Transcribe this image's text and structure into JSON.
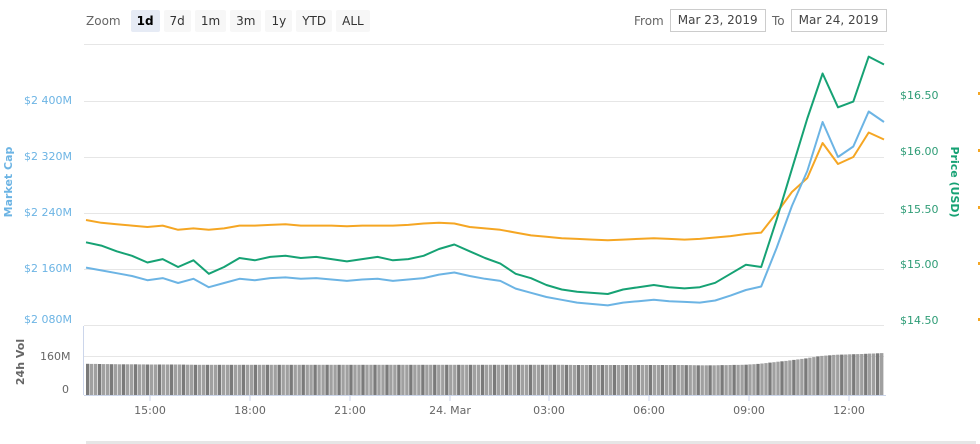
{
  "toolbar": {
    "zoom_label": "Zoom",
    "zoom_buttons": [
      {
        "label": "1d",
        "active": true
      },
      {
        "label": "7d",
        "active": false
      },
      {
        "label": "1m",
        "active": false
      },
      {
        "label": "3m",
        "active": false
      },
      {
        "label": "1y",
        "active": false
      },
      {
        "label": "YTD",
        "active": false
      },
      {
        "label": "ALL",
        "active": false
      }
    ],
    "from_label": "From",
    "from_value": "Mar 23, 2019",
    "to_label": "To",
    "to_value": "Mar 24, 2019"
  },
  "colors": {
    "market_cap": "#6cb4e4",
    "price_usd": "#16a274",
    "price_btc": "#f5a623",
    "volume": "#8c8c8c",
    "grid": "#e6e6e6"
  },
  "chart_data": {
    "type": "line",
    "title": "",
    "x_ticks": [
      "15:00",
      "18:00",
      "21:00",
      "24. Mar",
      "03:00",
      "06:00",
      "09:00",
      "12:00"
    ],
    "y_left": {
      "label": "Market Cap",
      "ticks": [
        "$2 400M",
        "$2 320M",
        "$2 240M",
        "$2 160M",
        "$2 080M"
      ],
      "range": [
        2080,
        2480
      ]
    },
    "y_right": {
      "label": "Price (USD)",
      "ticks": [
        "$16.50",
        "$16.00",
        "$15.50",
        "$15.00",
        "$14.50"
      ],
      "range": [
        14.5,
        17.0
      ]
    },
    "volume_axis": {
      "label": "24h Vol",
      "ticks": [
        "160M",
        "0"
      ]
    },
    "x": [
      "13:00",
      "13:30",
      "14:00",
      "14:30",
      "15:00",
      "15:30",
      "16:00",
      "16:30",
      "17:00",
      "17:30",
      "18:00",
      "18:30",
      "19:00",
      "19:30",
      "20:00",
      "20:30",
      "21:00",
      "21:30",
      "22:00",
      "22:30",
      "23:00",
      "23:30",
      "00:00",
      "00:30",
      "01:00",
      "01:30",
      "02:00",
      "02:30",
      "03:00",
      "03:30",
      "04:00",
      "04:30",
      "05:00",
      "05:30",
      "06:00",
      "06:30",
      "07:00",
      "07:30",
      "08:00",
      "08:30",
      "09:00",
      "09:30",
      "10:00",
      "10:30",
      "11:00",
      "11:15",
      "11:30",
      "11:45",
      "12:00",
      "12:15",
      "12:30",
      "12:45",
      "13:00"
    ],
    "series": [
      {
        "name": "Market Cap",
        "axis": "left",
        "values": [
          2162,
          2158,
          2154,
          2150,
          2144,
          2147,
          2140,
          2146,
          2134,
          2140,
          2146,
          2144,
          2147,
          2148,
          2146,
          2147,
          2145,
          2143,
          2145,
          2146,
          2143,
          2145,
          2147,
          2152,
          2155,
          2150,
          2146,
          2143,
          2132,
          2126,
          2120,
          2116,
          2112,
          2110,
          2108,
          2112,
          2114,
          2116,
          2114,
          2113,
          2112,
          2115,
          2122,
          2130,
          2135,
          2190,
          2250,
          2300,
          2370,
          2320,
          2335,
          2385,
          2370
        ]
      },
      {
        "name": "Price (USD)",
        "axis": "right",
        "values": [
          15.2,
          15.17,
          15.12,
          15.08,
          15.02,
          15.05,
          14.98,
          15.04,
          14.92,
          14.98,
          15.06,
          15.04,
          15.07,
          15.08,
          15.06,
          15.07,
          15.05,
          15.03,
          15.05,
          15.07,
          15.04,
          15.05,
          15.08,
          15.14,
          15.18,
          15.12,
          15.06,
          15.01,
          14.92,
          14.88,
          14.82,
          14.78,
          14.76,
          14.75,
          14.74,
          14.78,
          14.8,
          14.82,
          14.8,
          14.79,
          14.8,
          14.84,
          14.92,
          15.0,
          14.98,
          15.4,
          15.85,
          16.3,
          16.7,
          16.4,
          16.45,
          16.85,
          16.78
        ]
      },
      {
        "name": "Price (BTC)",
        "axis": "left-relative",
        "values": [
          2230,
          2226,
          2224,
          2222,
          2220,
          2222,
          2216,
          2218,
          2216,
          2218,
          2222,
          2222,
          2223,
          2224,
          2222,
          2222,
          2222,
          2221,
          2222,
          2222,
          2222,
          2223,
          2225,
          2226,
          2225,
          2220,
          2218,
          2216,
          2212,
          2208,
          2206,
          2204,
          2203,
          2202,
          2201,
          2202,
          2203,
          2204,
          2203,
          2202,
          2203,
          2205,
          2207,
          2210,
          2212,
          2240,
          2270,
          2290,
          2340,
          2310,
          2320,
          2355,
          2345
        ]
      },
      {
        "name": "24h Vol",
        "axis": "volume",
        "type": "bar",
        "values": [
          128,
          127,
          126,
          126,
          125,
          125,
          125,
          124,
          124,
          124,
          124,
          124,
          124,
          124,
          124,
          124,
          124,
          124,
          124,
          124,
          124,
          124,
          124,
          124,
          124,
          124,
          124,
          124,
          124,
          124,
          124,
          124,
          123,
          123,
          123,
          123,
          123,
          123,
          123,
          123,
          122,
          122,
          123,
          124,
          128,
          135,
          142,
          150,
          160,
          165,
          167,
          169,
          172
        ]
      }
    ]
  }
}
